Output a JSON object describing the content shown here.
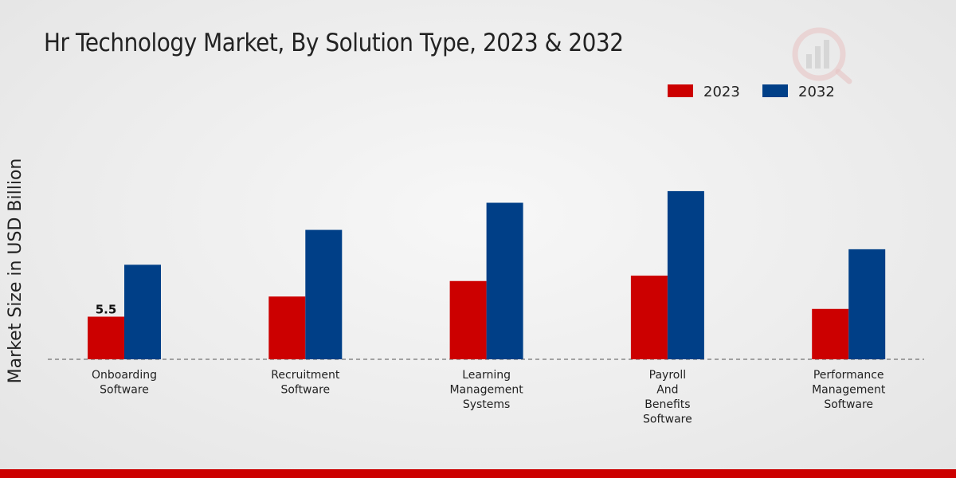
{
  "chart_data": {
    "type": "bar",
    "title": "Hr Technology Market, By Solution Type, 2023 & 2032",
    "ylabel": "Market Size in USD Billion",
    "xlabel": "",
    "categories": [
      [
        "Onboarding",
        "Software"
      ],
      [
        "Recruitment",
        "Software"
      ],
      [
        "Learning",
        "Management",
        "Systems"
      ],
      [
        "Payroll",
        "And",
        "Benefits",
        "Software"
      ],
      [
        "Performance",
        "Management",
        "Software"
      ]
    ],
    "series": [
      {
        "name": "2023",
        "color": "#cc0000",
        "values": [
          5.5,
          8.1,
          10.1,
          10.8,
          6.5
        ]
      },
      {
        "name": "2032",
        "color": "#003f87",
        "values": [
          12.2,
          16.7,
          20.2,
          21.7,
          14.2
        ]
      }
    ],
    "data_labels": [
      {
        "series": 0,
        "index": 0,
        "text": "5.5"
      }
    ],
    "ylim": [
      0,
      33
    ],
    "legend_position": "top-right",
    "grid": false
  }
}
